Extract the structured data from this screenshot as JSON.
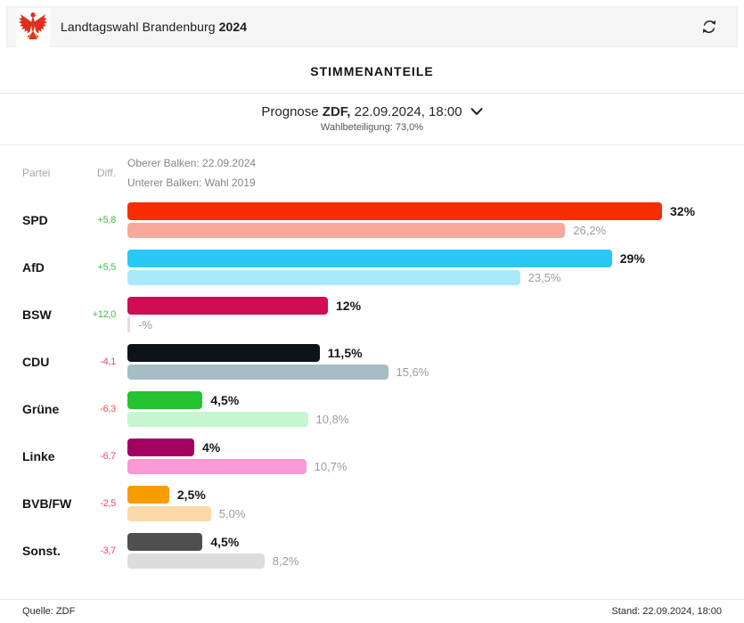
{
  "header": {
    "title_regular": "Landtagswahl Brandenburg ",
    "title_bold": "2024",
    "logo_icon": "brandenburg-eagle",
    "refresh_icon": "refresh"
  },
  "section": {
    "title": "STIMMENANTEILE"
  },
  "selector": {
    "prefix": "Prognose ",
    "source_bold": "ZDF,",
    "datetime": " 22.09.2024, 18:00",
    "turnout": "Wahlbeteiligung: 73,0%"
  },
  "table_head": {
    "col_party": "Partei",
    "col_diff": "Diff.",
    "legend_top": "Oberer Balken: 22.09.2024",
    "legend_bottom": "Unterer Balken: Wahl 2019"
  },
  "footer": {
    "source": "Quelle: ZDF",
    "stand": "Stand: 22.09.2024, 18:00"
  },
  "colors": {
    "diff_up": "#3dbd46",
    "diff_down": "#f5465a"
  },
  "chart_data": {
    "type": "bar",
    "orientation": "horizontal",
    "title": "STIMMENANTEILE",
    "legend": [
      "Oberer Balken: 22.09.2024",
      "Unterer Balken: Wahl 2019"
    ],
    "legend_position": "top",
    "grid": false,
    "xlim": [
      0,
      32
    ],
    "categories": [
      "SPD",
      "AfD",
      "BSW",
      "CDU",
      "Grüne",
      "Linke",
      "BVB/FW",
      "Sonst."
    ],
    "series": [
      {
        "name": "Prognose 22.09.2024",
        "values": [
          32,
          29,
          12,
          11.5,
          4.5,
          4,
          2.5,
          4.5
        ]
      },
      {
        "name": "Wahl 2019",
        "values": [
          26.2,
          23.5,
          null,
          15.6,
          10.8,
          10.7,
          5.0,
          8.2
        ]
      }
    ],
    "parties": [
      {
        "name": "SPD",
        "diff": "+5,8",
        "trend": "up",
        "value": 32,
        "value_label": "32%",
        "prev_value": 26.2,
        "prev_label": "26,2%",
        "color": "#f82e02",
        "color_prev": "#f9a89c"
      },
      {
        "name": "AfD",
        "diff": "+5,5",
        "trend": "up",
        "value": 29,
        "value_label": "29%",
        "prev_value": 23.5,
        "prev_label": "23,5%",
        "color": "#29c8f7",
        "color_prev": "#a9e9fc"
      },
      {
        "name": "BSW",
        "diff": "+12,0",
        "trend": "up",
        "value": 12,
        "value_label": "12%",
        "prev_value": null,
        "prev_label": "-%",
        "color": "#cf0c54",
        "color_prev": "#f5d2de"
      },
      {
        "name": "CDU",
        "diff": "-4,1",
        "trend": "down",
        "value": 11.5,
        "value_label": "11,5%",
        "prev_value": 15.6,
        "prev_label": "15,6%",
        "color": "#0e1317",
        "color_prev": "#a5bdc5"
      },
      {
        "name": "Grüne",
        "diff": "-6,3",
        "trend": "down",
        "value": 4.5,
        "value_label": "4,5%",
        "prev_value": 10.8,
        "prev_label": "10,8%",
        "color": "#25c32f",
        "color_prev": "#c5f6d0"
      },
      {
        "name": "Linke",
        "diff": "-6,7",
        "trend": "down",
        "value": 4,
        "value_label": "4%",
        "prev_value": 10.7,
        "prev_label": "10,7%",
        "color": "#a30263",
        "color_prev": "#f999d5"
      },
      {
        "name": "BVB/FW",
        "diff": "-2,5",
        "trend": "down",
        "value": 2.5,
        "value_label": "2,5%",
        "prev_value": 5.0,
        "prev_label": "5,0%",
        "color": "#f89d00",
        "color_prev": "#fbd9a8"
      },
      {
        "name": "Sonst.",
        "diff": "-3,7",
        "trend": "down",
        "value": 4.5,
        "value_label": "4,5%",
        "prev_value": 8.2,
        "prev_label": "8,2%",
        "color": "#4f4f4f",
        "color_prev": "#dcdcdc"
      }
    ]
  }
}
